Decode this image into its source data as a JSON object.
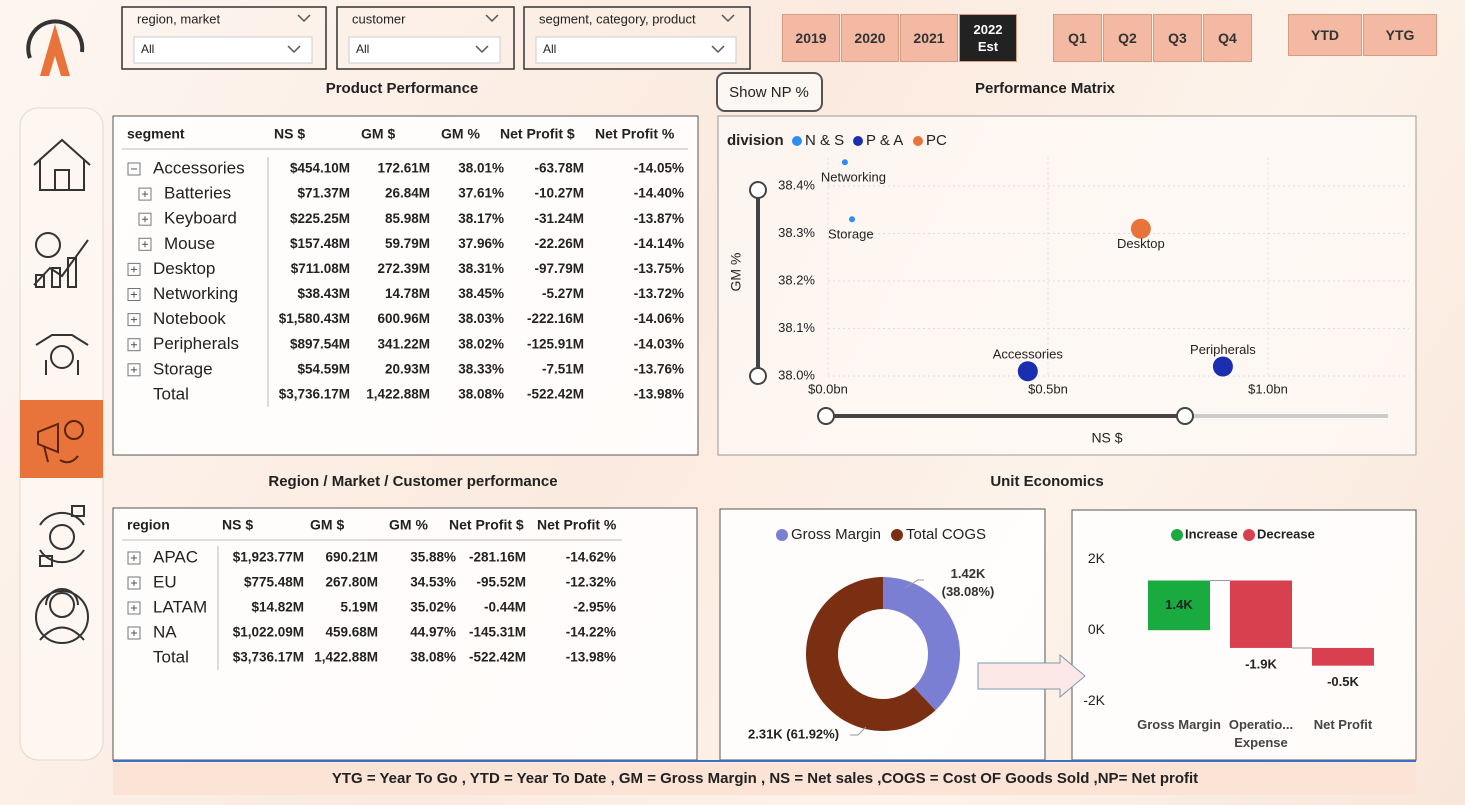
{
  "filters": [
    {
      "label": "region, market",
      "value": "All"
    },
    {
      "label": "customer",
      "value": "All"
    },
    {
      "label": "segment, category, product",
      "value": "All"
    }
  ],
  "years": [
    "2019",
    "2020",
    "2021",
    "2022 Est"
  ],
  "quarters": [
    "Q1",
    "Q2",
    "Q3",
    "Q4"
  ],
  "periods": [
    "YTD",
    "YTG"
  ],
  "product_performance": {
    "title": "Product Performance",
    "columns": [
      "segment",
      "NS $",
      "GM $",
      "GM %",
      "Net Profit $",
      "Net Profit %"
    ],
    "rows": [
      [
        "Accessories",
        "$454.10M",
        "172.61M",
        "38.01%",
        "-63.78M",
        "-14.05%"
      ],
      [
        "Batteries",
        "$71.37M",
        "26.84M",
        "37.61%",
        "-10.27M",
        "-14.40%"
      ],
      [
        "Keyboard",
        "$225.25M",
        "85.98M",
        "38.17%",
        "-31.24M",
        "-13.87%"
      ],
      [
        "Mouse",
        "$157.48M",
        "59.79M",
        "37.96%",
        "-22.26M",
        "-14.14%"
      ],
      [
        "Desktop",
        "$711.08M",
        "272.39M",
        "38.31%",
        "-97.79M",
        "-13.75%"
      ],
      [
        "Networking",
        "$38.43M",
        "14.78M",
        "38.45%",
        "-5.27M",
        "-13.72%"
      ],
      [
        "Notebook",
        "$1,580.43M",
        "600.96M",
        "38.03%",
        "-222.16M",
        "-14.06%"
      ],
      [
        "Peripherals",
        "$897.54M",
        "341.22M",
        "38.02%",
        "-125.91M",
        "-14.03%"
      ],
      [
        "Storage",
        "$54.59M",
        "20.93M",
        "38.33%",
        "-7.51M",
        "-13.76%"
      ],
      [
        "Total",
        "$3,736.17M",
        "1,422.88M",
        "38.08%",
        "-522.42M",
        "-13.98%"
      ]
    ]
  },
  "show_np_button": "Show NP %",
  "region_performance": {
    "title": "Region / Market / Customer performance",
    "columns": [
      "region",
      "NS $",
      "GM $",
      "GM %",
      "Net Profit $",
      "Net Profit %"
    ],
    "rows": [
      [
        "APAC",
        "$1,923.77M",
        "690.21M",
        "35.88%",
        "-281.16M",
        "-14.62%"
      ],
      [
        "EU",
        "$775.48M",
        "267.80M",
        "34.53%",
        "-95.52M",
        "-12.32%"
      ],
      [
        "LATAM",
        "$14.82M",
        "5.19M",
        "35.02%",
        "-0.44M",
        "-2.95%"
      ],
      [
        "NA",
        "$1,022.09M",
        "459.68M",
        "44.97%",
        "-145.31M",
        "-14.22%"
      ],
      [
        "Total",
        "$3,736.17M",
        "1,422.88M",
        "38.08%",
        "-522.42M",
        "-13.98%"
      ]
    ]
  },
  "unit_economics_title": "Unit Economics",
  "footer": "YTG = Year To Go , YTD = Year To Date , GM = Gross Margin , NS = Net sales ,COGS = Cost OF Goods Sold  ,NP= Net profit",
  "chart_data": [
    {
      "type": "scatter",
      "title": "Performance Matrix",
      "legend_title": "division",
      "xlabel": "NS $",
      "ylabel": "GM %",
      "series": [
        {
          "name": "N & S",
          "color": "#2b8ef0",
          "x": [
            0.03843,
            0.05459
          ],
          "values": [
            38.45,
            38.33
          ],
          "labels": [
            "Networking",
            "Storage"
          ]
        },
        {
          "name": "P & A",
          "color": "#1b2eb0",
          "x": [
            0.4541,
            0.89754
          ],
          "values": [
            38.01,
            38.02
          ],
          "labels": [
            "Accessories",
            "Peripherals"
          ]
        },
        {
          "name": "PC",
          "color": "#e8743b",
          "x": [
            0.71108
          ],
          "values": [
            38.31
          ],
          "labels": [
            "Desktop"
          ]
        }
      ],
      "xlim": [
        0,
        1.32
      ],
      "ylim": [
        38.0,
        38.46
      ],
      "xticks": [
        {
          "value": 0,
          "label": "$0.0bn"
        },
        {
          "value": 0.5,
          "label": "$0.5bn"
        },
        {
          "value": 1,
          "label": "$1.0bn"
        }
      ],
      "yticks": [
        {
          "value": 38.0,
          "label": "38.0%"
        },
        {
          "value": 38.1,
          "label": "38.1%"
        },
        {
          "value": 38.2,
          "label": "38.2%"
        },
        {
          "value": 38.3,
          "label": "38.3%"
        },
        {
          "value": 38.4,
          "label": "38.4%"
        }
      ],
      "grid": true
    },
    {
      "type": "pie",
      "categories": [
        "Gross Margin",
        "Total COGS"
      ],
      "values": [
        1.42,
        2.31
      ],
      "value_labels": [
        "1.42K (38.08%)",
        "2.31K (61.92%)"
      ],
      "colors": [
        "#7b7fd4",
        "#7a2e12"
      ]
    },
    {
      "type": "waterfall",
      "categories": [
        "Gross Margin",
        "Operatio... Expense",
        "Net Profit"
      ],
      "values": [
        1.4,
        -1.9,
        -0.5
      ],
      "value_labels": [
        "1.4K",
        "-1.9K",
        "-0.5K"
      ],
      "legend": [
        "Increase",
        "Decrease"
      ],
      "colors": [
        "#1aab40",
        "#d9404f"
      ],
      "ylim": [
        -2.3,
        2.4
      ],
      "yticks": [
        {
          "value": 2,
          "label": "2K"
        },
        {
          "value": 0,
          "label": "0K"
        },
        {
          "value": -2,
          "label": "-2K"
        }
      ]
    }
  ]
}
